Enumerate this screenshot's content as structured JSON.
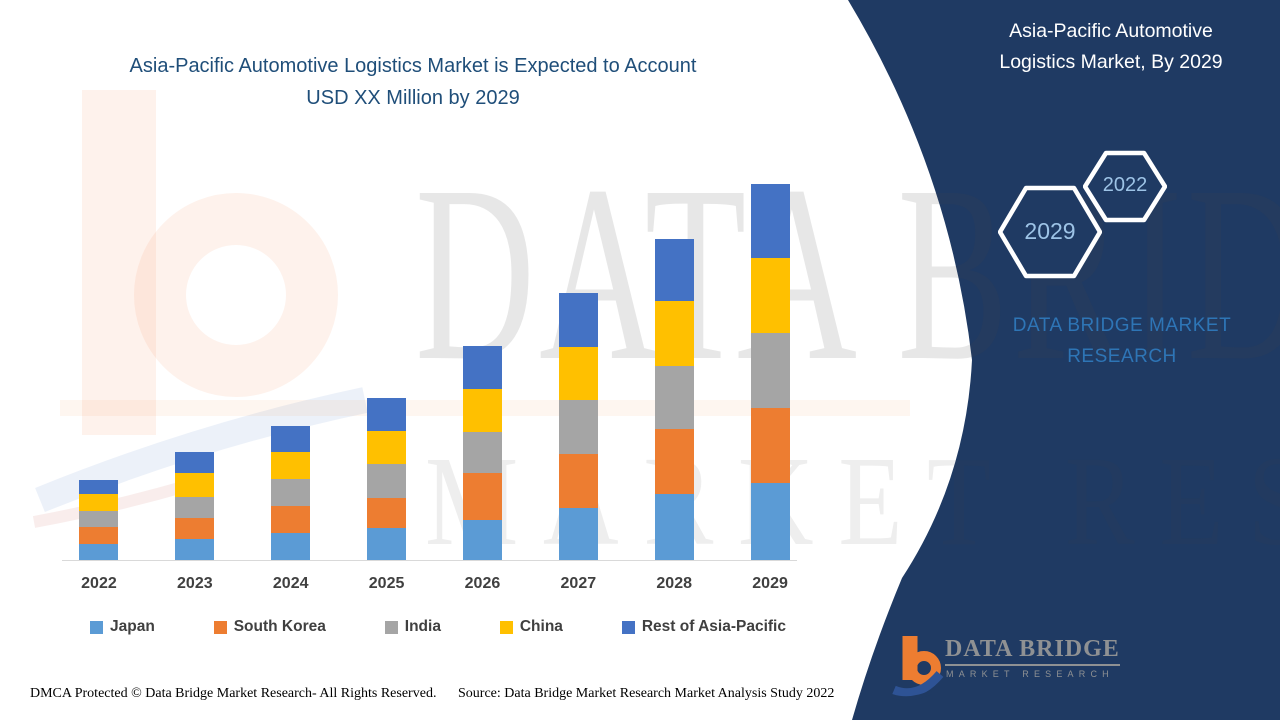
{
  "title": {
    "line1": "Asia-Pacific Automotive Logistics Market is Expected to Account",
    "line2": "USD XX Million by 2029"
  },
  "panel": {
    "heading_line1": "Asia-Pacific Automotive",
    "heading_line2": "Logistics Market, By 2029",
    "hexagons": [
      {
        "label": "2022"
      },
      {
        "label": "2029"
      }
    ],
    "brand_text": "DATA BRIDGE MARKET RESEARCH",
    "logo": {
      "name": "DATA BRIDGE",
      "sub": "MARKET RESEARCH"
    },
    "background_color": "#1F3A63",
    "brand_text_color": "#2E75B6",
    "hexagon_text_color": "#9DC3E6"
  },
  "watermark": {
    "line1": "DATA BRIDGE",
    "line2": "MARKET RESEARCH"
  },
  "footer": {
    "left": "DMCA Protected © Data Bridge Market Research- All Rights Reserved.",
    "right": "Source: Data Bridge Market Research Market Analysis Study 2022"
  },
  "chart_data": {
    "type": "bar",
    "stacked": true,
    "title": "Asia-Pacific Automotive Logistics Market is Expected to Account USD XX Million by 2029",
    "xlabel": "",
    "ylabel": "",
    "note": "No numeric y-axis shown (values undisclosed, 'USD XX Million'); series values below are relative units estimated from bar pixel heights, plot scale 0–400.",
    "ylim": [
      0,
      400
    ],
    "grid": false,
    "legend_position": "bottom",
    "categories": [
      "2022",
      "2023",
      "2024",
      "2025",
      "2026",
      "2027",
      "2028",
      "2029"
    ],
    "series": [
      {
        "name": "Japan",
        "color": "#5B9BD5",
        "values": [
          16,
          21,
          27,
          32,
          40,
          52,
          66,
          77
        ]
      },
      {
        "name": "South Korea",
        "color": "#ED7D31",
        "values": [
          17,
          21,
          27,
          30,
          47,
          54,
          65,
          75
        ]
      },
      {
        "name": "India",
        "color": "#A5A5A5",
        "values": [
          16,
          21,
          27,
          34,
          41,
          54,
          63,
          75
        ]
      },
      {
        "name": "China",
        "color": "#FFC000",
        "values": [
          17,
          24,
          27,
          33,
          43,
          53,
          65,
          75
        ]
      },
      {
        "name": "Rest of Asia-Pacific",
        "color": "#4472C4",
        "values": [
          14,
          21,
          26,
          33,
          43,
          54,
          62,
          74
        ]
      }
    ]
  }
}
